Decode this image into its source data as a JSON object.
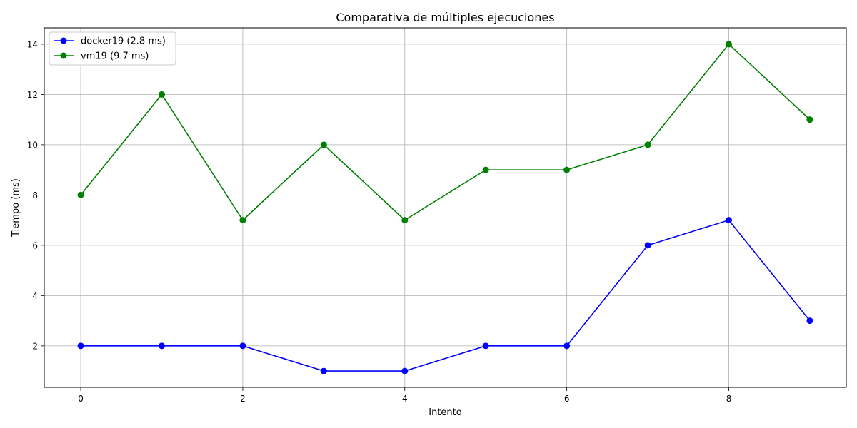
{
  "chart_data": {
    "type": "line",
    "title": "Comparativa de múltiples ejecuciones",
    "xlabel": "Intento",
    "ylabel": "Tiempo (ms)",
    "xlim": [
      -0.45,
      9.45
    ],
    "ylim": [
      0.35,
      14.65
    ],
    "x_ticks": [
      0,
      2,
      4,
      6,
      8
    ],
    "y_ticks": [
      2,
      4,
      6,
      8,
      10,
      12,
      14
    ],
    "grid": true,
    "legend_position": "top-left",
    "x": [
      0,
      1,
      2,
      3,
      4,
      5,
      6,
      7,
      8,
      9
    ],
    "series": [
      {
        "name": "docker19 (2.8 ms)",
        "color": "#0000ff",
        "marker": "circle",
        "values": [
          2,
          2,
          2,
          1,
          1,
          2,
          2,
          6,
          7,
          3
        ]
      },
      {
        "name": "vm19 (9.7 ms)",
        "color": "#008000",
        "marker": "circle",
        "values": [
          8,
          12,
          7,
          10,
          7,
          9,
          9,
          10,
          14,
          11
        ]
      }
    ]
  }
}
